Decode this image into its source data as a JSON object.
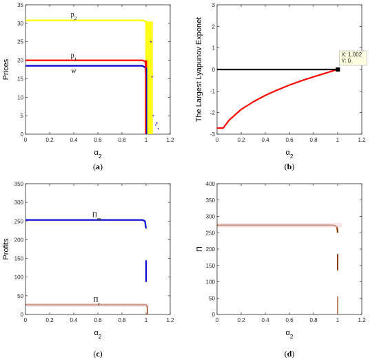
{
  "chart_data": [
    {
      "id": "a",
      "caption": "a",
      "type": "line",
      "ylabel": "Prices",
      "xlabel": "α",
      "xlabel_sub": "2",
      "xlim": [
        0,
        1.2
      ],
      "ylim": [
        0,
        35
      ],
      "xticks": [
        "0",
        "0.2",
        "0.4",
        "0.6",
        "0.8",
        "1",
        "1.2"
      ],
      "yticks": [
        "0",
        "5",
        "10",
        "15",
        "20",
        "25",
        "30",
        "35"
      ],
      "series": [
        {
          "name": "p",
          "sub": "2",
          "color": "#ffff00",
          "x": [
            0,
            0.97,
            1.0,
            1.03
          ],
          "values": [
            30.8,
            30.8,
            30.5,
            28
          ]
        },
        {
          "name": "p",
          "sub": "1",
          "color": "#ff0000",
          "x": [
            0,
            0.97,
            0.995,
            1.0
          ],
          "values": [
            20,
            20,
            19.6,
            16
          ]
        },
        {
          "name": "w",
          "sub": "",
          "color": "#0000cc",
          "x": [
            0,
            0.97,
            0.995,
            1.0
          ],
          "values": [
            18.5,
            18.5,
            18,
            14.5
          ]
        }
      ],
      "annotations": [
        {
          "text": "p",
          "sub": "2",
          "x": 0.4,
          "y": 31.8
        },
        {
          "text": "p",
          "sub": "1",
          "x": 0.4,
          "y": 20.8
        },
        {
          "text": "w",
          "sub": "",
          "x": 0.4,
          "y": 16.6
        }
      ]
    },
    {
      "id": "b",
      "caption": "b",
      "type": "line",
      "ylabel": "The Largest Lyapunov Exponet",
      "xlabel": "α",
      "xlabel_sub": "2",
      "xlim": [
        0,
        1.2
      ],
      "ylim": [
        -3,
        3
      ],
      "xticks": [
        "0",
        "0.2",
        "0.4",
        "0.6",
        "0.8",
        "1",
        "1.2"
      ],
      "yticks": [
        "-3",
        "-2",
        "-1",
        "0",
        "1",
        "2",
        "3"
      ],
      "series": [
        {
          "name": "",
          "color": "#ff0000",
          "x": [
            0,
            0.05,
            0.06,
            0.1,
            0.2,
            0.3,
            0.4,
            0.5,
            0.6,
            0.7,
            0.8,
            0.9,
            0.95,
            1.0
          ],
          "values": [
            -2.72,
            -2.72,
            -2.65,
            -2.35,
            -1.85,
            -1.5,
            -1.2,
            -0.95,
            -0.72,
            -0.52,
            -0.34,
            -0.17,
            -0.08,
            0
          ]
        },
        {
          "name": "",
          "color": "#000000",
          "x": [
            0,
            1.002
          ],
          "values": [
            0,
            0
          ]
        }
      ],
      "datatip": {
        "x": 1.002,
        "y": 0,
        "line1": "X: 1.002",
        "line2": "Y: 0"
      }
    },
    {
      "id": "c",
      "caption": "c",
      "type": "line",
      "ylabel": "Profits",
      "xlabel": "α",
      "xlabel_sub": "2",
      "xlim": [
        0,
        1.2
      ],
      "ylim": [
        0,
        350
      ],
      "xticks": [
        "0",
        "0.2",
        "0.4",
        "0.6",
        "0.8",
        "1",
        "1.2"
      ],
      "yticks": [
        "0",
        "50",
        "100",
        "150",
        "200",
        "250",
        "300",
        "350"
      ],
      "series": [
        {
          "name": "Π",
          "sub": "m",
          "color": "#0000cc",
          "x": [
            0,
            0.97,
            0.99,
            1.0
          ],
          "values": [
            253,
            253,
            250,
            230
          ]
        },
        {
          "name": "Π",
          "sub": "r",
          "color": "#8b3a0a",
          "x": [
            0,
            0.97,
            1.0,
            1.01
          ],
          "values": [
            26,
            26,
            25.5,
            20
          ]
        }
      ],
      "annotations": [
        {
          "text": "Π",
          "sub": "m",
          "x": 0.59,
          "y": 261
        },
        {
          "text": "Π",
          "sub": "r",
          "x": 0.59,
          "y": 33
        }
      ]
    },
    {
      "id": "d",
      "caption": "d",
      "type": "line",
      "ylabel": "Π",
      "xlabel": "α",
      "xlabel_sub": "2",
      "xlim": [
        0,
        1.2
      ],
      "ylim": [
        0,
        400
      ],
      "xticks": [
        "0",
        "0.2",
        "0.4",
        "0.6",
        "0.8",
        "1",
        "1.2"
      ],
      "yticks": [
        "0",
        "50",
        "100",
        "150",
        "200",
        "250",
        "300",
        "350",
        "400"
      ],
      "series": [
        {
          "name": "",
          "color": "#8b3a0a",
          "x": [
            0,
            0.97,
            0.995,
            1.0
          ],
          "values": [
            273,
            273,
            268,
            250
          ]
        }
      ]
    }
  ]
}
